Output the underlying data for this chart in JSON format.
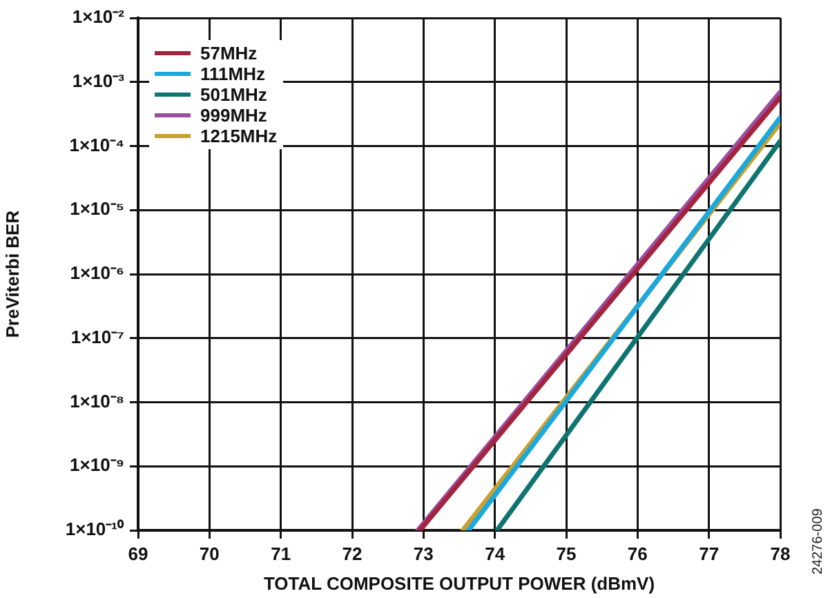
{
  "chart_data": {
    "type": "line",
    "xlabel": "TOTAL COMPOSITE OUTPUT POWER (dBmV)",
    "ylabel": "PreViterbi BER",
    "xlim": [
      69,
      78
    ],
    "xticks": [
      69,
      70,
      71,
      72,
      73,
      74,
      75,
      76,
      77,
      78
    ],
    "ylim": [
      1e-10,
      0.01
    ],
    "yticks": [
      {
        "value": 1e-10,
        "label": "1×10⁻¹⁰"
      },
      {
        "value": 1e-09,
        "label": "1×10⁻⁹"
      },
      {
        "value": 1e-08,
        "label": "1×10⁻⁸"
      },
      {
        "value": 1e-07,
        "label": "1×10⁻⁷"
      },
      {
        "value": 1e-06,
        "label": "1×10⁻⁶"
      },
      {
        "value": 1e-05,
        "label": "1×10⁻⁵"
      },
      {
        "value": 0.0001,
        "label": "1×10⁻⁴"
      },
      {
        "value": 0.001,
        "label": "1×10⁻³"
      },
      {
        "value": 0.01,
        "label": "1×10⁻²"
      }
    ],
    "log": "y",
    "grid": true,
    "legend": "top left",
    "marker": "none",
    "line_style": "solid",
    "annotations": [
      "24276-009"
    ],
    "series": [
      {
        "name": "57MHz",
        "color": "#a3243f",
        "x": [
          72.95,
          78
        ],
        "values": [
          1e-10,
          0.00058
        ]
      },
      {
        "name": "111MHz",
        "color": "#1ba8dd",
        "x": [
          73.63,
          78
        ],
        "values": [
          1e-10,
          0.00028
        ]
      },
      {
        "name": "501MHz",
        "color": "#0f7470",
        "x": [
          74.03,
          78
        ],
        "values": [
          1e-10,
          0.00012
        ]
      },
      {
        "name": "999MHz",
        "color": "#9b4fa1",
        "x": [
          72.92,
          78
        ],
        "values": [
          1e-10,
          0.0007
        ]
      },
      {
        "name": "1215MHz",
        "color": "#c9a030",
        "x": [
          73.55,
          78
        ],
        "values": [
          1e-10,
          0.00023
        ]
      }
    ]
  }
}
